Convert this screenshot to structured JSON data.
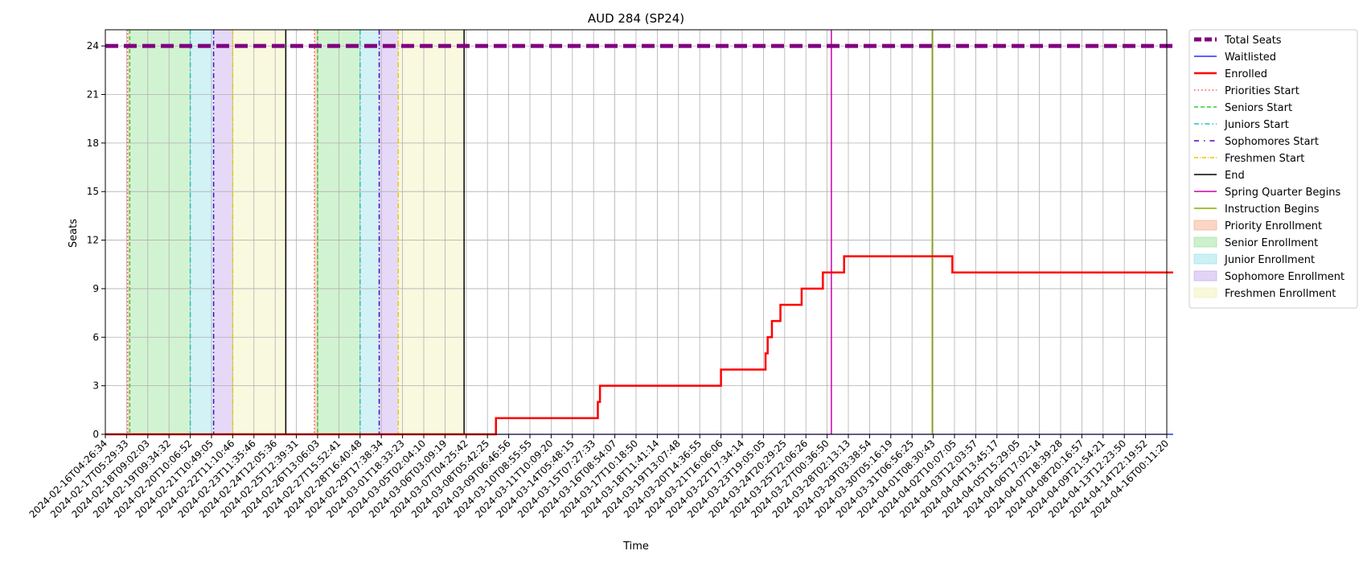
{
  "chart_data": {
    "type": "line",
    "title": "AUD 284 (SP24)",
    "xlabel": "Time",
    "ylabel": "Seats",
    "ylim": [
      0,
      25
    ],
    "yticks": [
      0,
      3,
      6,
      9,
      12,
      15,
      18,
      21,
      24
    ],
    "grid": true,
    "legend_position": "outside-right-top",
    "xlim": [
      "2024-02-16T04:26:34",
      "2024-04-16T00:11:20"
    ],
    "xtick_labels": [
      "2024-02-16T04:26:34",
      "2024-02-17T05:29:33",
      "2024-02-18T09:02:03",
      "2024-02-19T09:34:32",
      "2024-02-20T10:06:52",
      "2024-02-21T10:49:05",
      "2024-02-22T11:10:46",
      "2024-02-23T11:35:46",
      "2024-02-24T12:05:36",
      "2024-02-25T12:39:31",
      "2024-02-26T13:06:03",
      "2024-02-27T15:52:41",
      "2024-02-28T16:40:48",
      "2024-02-29T17:38:34",
      "2024-03-01T18:33:23",
      "2024-03-05T02:04:10",
      "2024-03-06T03:09:19",
      "2024-03-07T04:25:42",
      "2024-03-08T05:42:25",
      "2024-03-09T06:46:56",
      "2024-03-10T08:55:55",
      "2024-03-11T10:09:20",
      "2024-03-14T05:48:15",
      "2024-03-15T07:27:33",
      "2024-03-16T08:54:07",
      "2024-03-17T10:18:50",
      "2024-03-18T11:41:14",
      "2024-03-19T13:07:48",
      "2024-03-20T14:36:55",
      "2024-03-21T16:06:06",
      "2024-03-22T17:34:14",
      "2024-03-23T19:05:05",
      "2024-03-24T20:29:25",
      "2024-03-25T22:06:26",
      "2024-03-27T00:36:50",
      "2024-03-28T02:13:13",
      "2024-03-29T03:38:54",
      "2024-03-30T05:16:19",
      "2024-03-31T06:56:25",
      "2024-04-01T08:30:43",
      "2024-04-02T10:07:05",
      "2024-04-03T12:03:57",
      "2024-04-04T13:45:17",
      "2024-04-05T15:29:05",
      "2024-04-06T17:02:14",
      "2024-04-07T18:39:28",
      "2024-04-08T20:16:57",
      "2024-04-09T21:54:21",
      "2024-04-13T12:23:50",
      "2024-04-14T22:19:52",
      "2024-04-16T00:11:20"
    ],
    "series": [
      {
        "name": "Total Seats",
        "color": "#800080",
        "style": "dashed-thick",
        "points": [
          [
            0,
            24
          ],
          [
            50.3,
            24
          ]
        ]
      },
      {
        "name": "Waitlisted",
        "color": "#0000ff",
        "style": "solid",
        "points": [
          [
            0,
            0
          ],
          [
            50.3,
            0
          ]
        ]
      },
      {
        "name": "Enrolled",
        "color": "#ff0000",
        "style": "solid-step",
        "points": [
          [
            0,
            0
          ],
          [
            18.4,
            0
          ],
          [
            18.4,
            1
          ],
          [
            23.2,
            1
          ],
          [
            23.2,
            2
          ],
          [
            23.3,
            2
          ],
          [
            23.3,
            3
          ],
          [
            29.0,
            3
          ],
          [
            29.0,
            4
          ],
          [
            31.1,
            4
          ],
          [
            31.1,
            5
          ],
          [
            31.2,
            5
          ],
          [
            31.2,
            6
          ],
          [
            31.4,
            6
          ],
          [
            31.4,
            7
          ],
          [
            31.8,
            7
          ],
          [
            31.8,
            8
          ],
          [
            32.8,
            8
          ],
          [
            32.8,
            9
          ],
          [
            33.8,
            9
          ],
          [
            33.8,
            10
          ],
          [
            34.8,
            10
          ],
          [
            34.8,
            11
          ],
          [
            39.9,
            11
          ],
          [
            39.9,
            10
          ],
          [
            50.3,
            10
          ]
        ]
      }
    ],
    "markers": [
      {
        "name": "Priorities Start",
        "color": "#ff4d4d",
        "style": "dotted",
        "x": [
          1.05,
          9.85
        ]
      },
      {
        "name": "Seniors Start",
        "color": "#33cc33",
        "style": "dashed",
        "x": [
          1.15,
          10.0
        ]
      },
      {
        "name": "Juniors Start",
        "color": "#20c0c0",
        "style": "dashdot",
        "x": [
          4.0,
          12.0
        ]
      },
      {
        "name": "Sophomores Start",
        "color": "#5500cc",
        "style": "dashdot",
        "x": [
          5.1,
          12.9
        ]
      },
      {
        "name": "Freshmen Start",
        "color": "#e6c800",
        "style": "dashdot",
        "x": [
          6.0,
          13.8
        ]
      },
      {
        "name": "End",
        "color": "#000000",
        "style": "solid",
        "x": [
          8.5,
          16.9
        ]
      },
      {
        "name": "Spring Quarter Begins",
        "color": "#cc00aa",
        "style": "solid",
        "x": [
          34.2
        ]
      },
      {
        "name": "Instruction Begins",
        "color": "#88aa00",
        "style": "solid",
        "x": [
          38.95
        ]
      }
    ],
    "bands": [
      {
        "name": "Priority Enrollment",
        "color": "#f4a582",
        "ranges": [
          [
            1.05,
            1.15
          ],
          [
            9.85,
            10.0
          ]
        ]
      },
      {
        "name": "Senior Enrollment",
        "color": "#8fe08f",
        "ranges": [
          [
            1.15,
            4.0
          ],
          [
            10.0,
            12.0
          ]
        ]
      },
      {
        "name": "Junior Enrollment",
        "color": "#8fdfe6",
        "ranges": [
          [
            4.0,
            5.1
          ],
          [
            12.0,
            12.9
          ]
        ]
      },
      {
        "name": "Sophomore Enrollment",
        "color": "#c0a0ea",
        "ranges": [
          [
            5.1,
            6.0
          ],
          [
            12.9,
            13.8
          ]
        ]
      },
      {
        "name": "Freshmen Enrollment",
        "color": "#f0f0b0",
        "ranges": [
          [
            6.0,
            8.5
          ],
          [
            13.8,
            16.9
          ]
        ]
      }
    ],
    "legend": [
      {
        "label": "Total Seats",
        "kind": "line",
        "color": "#800080",
        "dash": "9,4",
        "width": 5
      },
      {
        "label": "Waitlisted",
        "kind": "line",
        "color": "#0000ff",
        "dash": "",
        "width": 1.2
      },
      {
        "label": "Enrolled",
        "kind": "line",
        "color": "#ff0000",
        "dash": "",
        "width": 2.5
      },
      {
        "label": "Priorities Start",
        "kind": "line",
        "color": "#ff4d4d",
        "dash": "1.5,3",
        "width": 1.5
      },
      {
        "label": "Seniors Start",
        "kind": "line",
        "color": "#33cc33",
        "dash": "5,3",
        "width": 1.5
      },
      {
        "label": "Juniors Start",
        "kind": "line",
        "color": "#20c0c0",
        "dash": "6,3,1.5,3",
        "width": 1.5
      },
      {
        "label": "Sophomores Start",
        "kind": "line",
        "color": "#5500cc",
        "dash": "6,6,1.5,6",
        "width": 1.5
      },
      {
        "label": "Freshmen Start",
        "kind": "line",
        "color": "#e6c800",
        "dash": "5,2,1,2",
        "width": 1.5
      },
      {
        "label": "End",
        "kind": "line",
        "color": "#000000",
        "dash": "",
        "width": 1.5
      },
      {
        "label": "Spring Quarter Begins",
        "kind": "line",
        "color": "#cc00aa",
        "dash": "",
        "width": 1.5
      },
      {
        "label": "Instruction Begins",
        "kind": "line",
        "color": "#88aa00",
        "dash": "",
        "width": 1.5
      },
      {
        "label": "Priority Enrollment",
        "kind": "patch",
        "color": "#f4a582"
      },
      {
        "label": "Senior Enrollment",
        "kind": "patch",
        "color": "#8fe08f"
      },
      {
        "label": "Junior Enrollment",
        "kind": "patch",
        "color": "#8fdfe6"
      },
      {
        "label": "Sophomore Enrollment",
        "kind": "patch",
        "color": "#c0a0ea"
      },
      {
        "label": "Freshmen Enrollment",
        "kind": "patch",
        "color": "#f0f0b0"
      }
    ]
  }
}
